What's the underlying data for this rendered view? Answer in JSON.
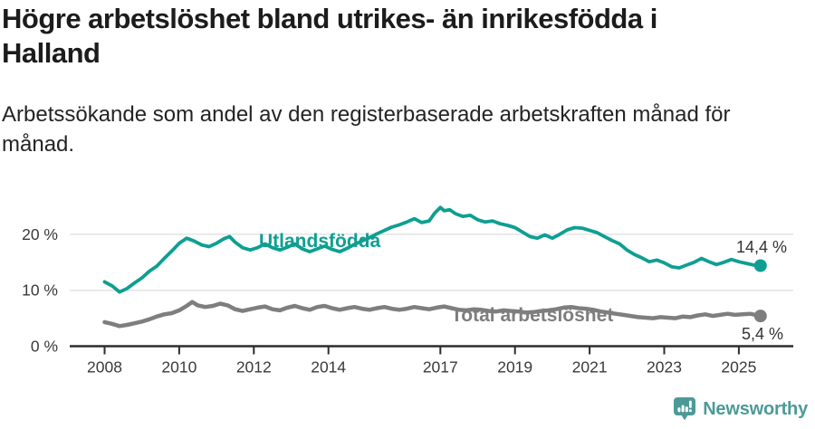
{
  "header": {
    "title": "Högre arbetslöshet bland utrikes- än inrikesfödda i\nHalland",
    "subtitle": "Arbetssökande som andel av den registerbaserade arbetskraften månad för\nmånad."
  },
  "footer": {
    "brand": "Newsworthy",
    "logo_icon": "newsworthy-bars-exclamation-bubble"
  },
  "colors": {
    "accent_teal": "#0e9f92",
    "gray_line": "#7e7e7e",
    "brand_teal": "#4c9a97",
    "axis": "#2d2d2d",
    "grid": "#e3e3e3",
    "text_dark": "#1c1c1c"
  },
  "chart_data": {
    "type": "line",
    "title": "Högre arbetslöshet bland utrikes- än inrikesfödda i Halland",
    "subtitle": "Arbetssökande som andel av den registerbaserade arbetskraften månad för månad.",
    "xlabel": "",
    "ylabel": "",
    "grid": true,
    "legend_position": "inline-labels-on-lines",
    "x_axis": {
      "ticks": [
        2008,
        2010,
        2012,
        2014,
        2017,
        2019,
        2021,
        2023,
        2025
      ],
      "labels": [
        "2008",
        "2010",
        "2012",
        "2014",
        "2017",
        "2019",
        "2021",
        "2023",
        "2025"
      ],
      "range": [
        2007.1,
        2026.4
      ]
    },
    "y_axis": {
      "ticks": [
        0,
        10,
        20
      ],
      "labels": [
        "0 %",
        "10 %",
        "20 %"
      ],
      "range": [
        0,
        27
      ]
    },
    "series": [
      {
        "name": "Utlandsfödda",
        "color": "#0e9f92",
        "end_value": 14.4,
        "end_label": "14,4 %",
        "points": [
          [
            2008.0,
            11.5
          ],
          [
            2008.2,
            10.8
          ],
          [
            2008.4,
            9.7
          ],
          [
            2008.6,
            10.3
          ],
          [
            2008.8,
            11.3
          ],
          [
            2009.0,
            12.2
          ],
          [
            2009.2,
            13.4
          ],
          [
            2009.4,
            14.3
          ],
          [
            2009.6,
            15.7
          ],
          [
            2009.8,
            17.0
          ],
          [
            2010.0,
            18.4
          ],
          [
            2010.2,
            19.3
          ],
          [
            2010.4,
            18.8
          ],
          [
            2010.6,
            18.1
          ],
          [
            2010.8,
            17.8
          ],
          [
            2011.0,
            18.4
          ],
          [
            2011.2,
            19.2
          ],
          [
            2011.35,
            19.6
          ],
          [
            2011.5,
            18.6
          ],
          [
            2011.7,
            17.6
          ],
          [
            2011.9,
            17.2
          ],
          [
            2012.1,
            17.6
          ],
          [
            2012.3,
            18.3
          ],
          [
            2012.5,
            17.6
          ],
          [
            2012.7,
            17.2
          ],
          [
            2012.9,
            17.7
          ],
          [
            2013.1,
            18.3
          ],
          [
            2013.3,
            17.4
          ],
          [
            2013.5,
            16.9
          ],
          [
            2013.7,
            17.4
          ],
          [
            2013.9,
            17.9
          ],
          [
            2014.1,
            17.3
          ],
          [
            2014.3,
            16.9
          ],
          [
            2014.5,
            17.5
          ],
          [
            2014.7,
            18.2
          ],
          [
            2014.9,
            18.8
          ],
          [
            2015.1,
            19.4
          ],
          [
            2015.3,
            20.1
          ],
          [
            2015.5,
            20.7
          ],
          [
            2015.7,
            21.3
          ],
          [
            2015.9,
            21.7
          ],
          [
            2016.1,
            22.2
          ],
          [
            2016.3,
            22.8
          ],
          [
            2016.5,
            22.1
          ],
          [
            2016.7,
            22.4
          ],
          [
            2016.85,
            23.8
          ],
          [
            2017.0,
            24.8
          ],
          [
            2017.1,
            24.2
          ],
          [
            2017.25,
            24.4
          ],
          [
            2017.4,
            23.7
          ],
          [
            2017.6,
            23.2
          ],
          [
            2017.8,
            23.4
          ],
          [
            2018.0,
            22.6
          ],
          [
            2018.2,
            22.2
          ],
          [
            2018.4,
            22.4
          ],
          [
            2018.6,
            21.9
          ],
          [
            2018.8,
            21.6
          ],
          [
            2019.0,
            21.2
          ],
          [
            2019.2,
            20.4
          ],
          [
            2019.4,
            19.6
          ],
          [
            2019.6,
            19.3
          ],
          [
            2019.8,
            19.9
          ],
          [
            2020.0,
            19.3
          ],
          [
            2020.2,
            20.0
          ],
          [
            2020.4,
            20.8
          ],
          [
            2020.6,
            21.2
          ],
          [
            2020.8,
            21.1
          ],
          [
            2021.0,
            20.7
          ],
          [
            2021.2,
            20.3
          ],
          [
            2021.4,
            19.6
          ],
          [
            2021.6,
            18.9
          ],
          [
            2021.8,
            18.3
          ],
          [
            2022.0,
            17.2
          ],
          [
            2022.2,
            16.4
          ],
          [
            2022.4,
            15.8
          ],
          [
            2022.6,
            15.1
          ],
          [
            2022.8,
            15.4
          ],
          [
            2023.0,
            14.9
          ],
          [
            2023.2,
            14.2
          ],
          [
            2023.4,
            14.0
          ],
          [
            2023.6,
            14.5
          ],
          [
            2023.8,
            15.0
          ],
          [
            2024.0,
            15.7
          ],
          [
            2024.2,
            15.1
          ],
          [
            2024.4,
            14.6
          ],
          [
            2024.6,
            15.0
          ],
          [
            2024.8,
            15.5
          ],
          [
            2025.0,
            15.1
          ],
          [
            2025.2,
            14.8
          ],
          [
            2025.4,
            14.5
          ],
          [
            2025.58,
            14.4
          ]
        ]
      },
      {
        "name": "Total arbetslöshet",
        "color": "#7e7e7e",
        "end_value": 5.4,
        "end_label": "5,4 %",
        "points": [
          [
            2008.0,
            4.3
          ],
          [
            2008.2,
            4.0
          ],
          [
            2008.4,
            3.6
          ],
          [
            2008.6,
            3.8
          ],
          [
            2008.8,
            4.1
          ],
          [
            2009.0,
            4.4
          ],
          [
            2009.2,
            4.8
          ],
          [
            2009.4,
            5.3
          ],
          [
            2009.6,
            5.7
          ],
          [
            2009.8,
            5.9
          ],
          [
            2010.0,
            6.4
          ],
          [
            2010.2,
            7.2
          ],
          [
            2010.35,
            7.9
          ],
          [
            2010.5,
            7.3
          ],
          [
            2010.7,
            7.0
          ],
          [
            2010.9,
            7.2
          ],
          [
            2011.1,
            7.6
          ],
          [
            2011.3,
            7.3
          ],
          [
            2011.5,
            6.6
          ],
          [
            2011.7,
            6.3
          ],
          [
            2011.9,
            6.6
          ],
          [
            2012.1,
            6.9
          ],
          [
            2012.3,
            7.1
          ],
          [
            2012.5,
            6.6
          ],
          [
            2012.7,
            6.4
          ],
          [
            2012.9,
            6.9
          ],
          [
            2013.1,
            7.2
          ],
          [
            2013.3,
            6.8
          ],
          [
            2013.5,
            6.5
          ],
          [
            2013.7,
            7.0
          ],
          [
            2013.9,
            7.2
          ],
          [
            2014.1,
            6.8
          ],
          [
            2014.3,
            6.5
          ],
          [
            2014.5,
            6.8
          ],
          [
            2014.7,
            7.0
          ],
          [
            2014.9,
            6.7
          ],
          [
            2015.1,
            6.5
          ],
          [
            2015.3,
            6.8
          ],
          [
            2015.5,
            7.0
          ],
          [
            2015.7,
            6.7
          ],
          [
            2015.9,
            6.5
          ],
          [
            2016.1,
            6.7
          ],
          [
            2016.3,
            7.0
          ],
          [
            2016.5,
            6.8
          ],
          [
            2016.7,
            6.6
          ],
          [
            2016.9,
            6.9
          ],
          [
            2017.1,
            7.1
          ],
          [
            2017.3,
            6.8
          ],
          [
            2017.5,
            6.5
          ],
          [
            2017.7,
            6.4
          ],
          [
            2017.9,
            6.6
          ],
          [
            2018.1,
            6.5
          ],
          [
            2018.3,
            6.3
          ],
          [
            2018.5,
            6.2
          ],
          [
            2018.7,
            6.4
          ],
          [
            2018.9,
            6.3
          ],
          [
            2019.1,
            6.2
          ],
          [
            2019.3,
            6.0
          ],
          [
            2019.5,
            6.1
          ],
          [
            2019.7,
            6.3
          ],
          [
            2019.9,
            6.4
          ],
          [
            2020.1,
            6.6
          ],
          [
            2020.3,
            6.9
          ],
          [
            2020.5,
            7.0
          ],
          [
            2020.7,
            6.8
          ],
          [
            2020.9,
            6.7
          ],
          [
            2021.1,
            6.5
          ],
          [
            2021.3,
            6.2
          ],
          [
            2021.5,
            6.0
          ],
          [
            2021.7,
            5.8
          ],
          [
            2021.9,
            5.6
          ],
          [
            2022.1,
            5.4
          ],
          [
            2022.3,
            5.2
          ],
          [
            2022.5,
            5.1
          ],
          [
            2022.7,
            5.0
          ],
          [
            2022.9,
            5.2
          ],
          [
            2023.1,
            5.1
          ],
          [
            2023.3,
            5.0
          ],
          [
            2023.5,
            5.3
          ],
          [
            2023.7,
            5.2
          ],
          [
            2023.9,
            5.5
          ],
          [
            2024.1,
            5.7
          ],
          [
            2024.3,
            5.4
          ],
          [
            2024.5,
            5.6
          ],
          [
            2024.7,
            5.8
          ],
          [
            2024.9,
            5.6
          ],
          [
            2025.1,
            5.7
          ],
          [
            2025.3,
            5.8
          ],
          [
            2025.45,
            5.6
          ],
          [
            2025.58,
            5.4
          ]
        ]
      }
    ]
  }
}
